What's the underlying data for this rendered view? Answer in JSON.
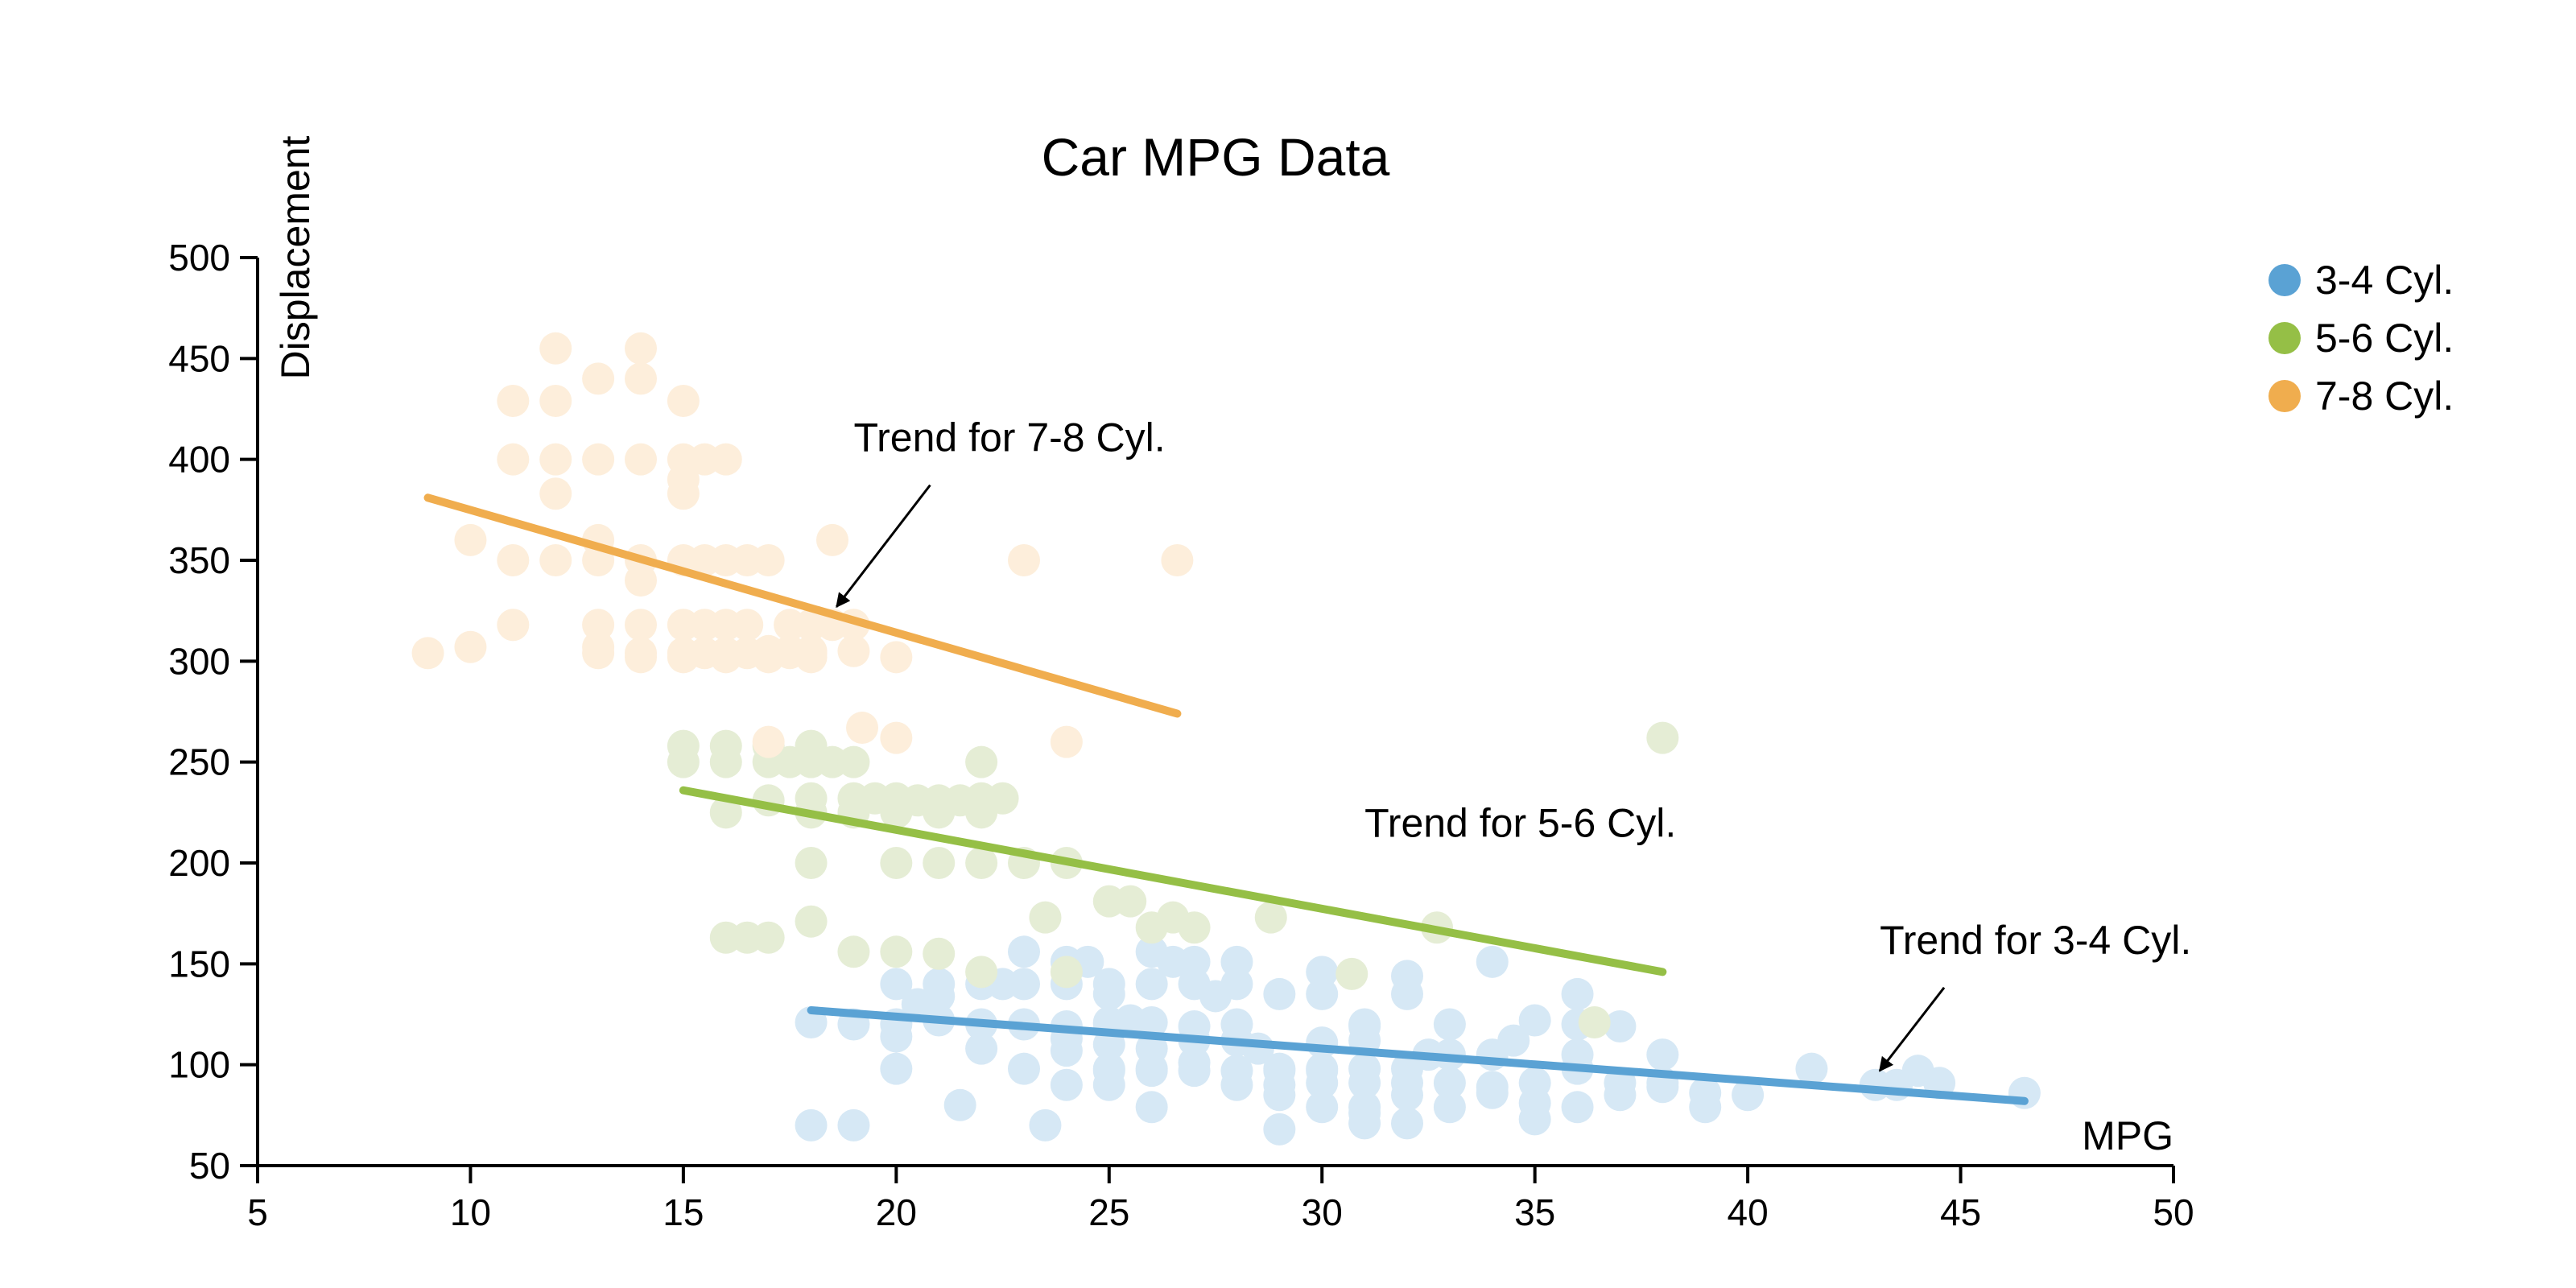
{
  "chart_data": {
    "type": "scatter",
    "title": "Car MPG Data",
    "xlabel": "MPG",
    "ylabel": "Displacement",
    "xlim": [
      5,
      50
    ],
    "ylim": [
      50,
      500
    ],
    "xticks": [
      5,
      10,
      15,
      20,
      25,
      30,
      35,
      40,
      45,
      50
    ],
    "yticks": [
      50,
      100,
      150,
      200,
      250,
      300,
      350,
      400,
      450,
      500
    ],
    "grid": false,
    "legend_position": "top-right",
    "series": [
      {
        "name": "3-4 Cyl.",
        "color": "#5aa2d4",
        "point_color": "#d6e8f5",
        "points": [
          [
            18,
            121
          ],
          [
            18,
            70
          ],
          [
            19,
            120
          ],
          [
            19,
            70
          ],
          [
            20,
            140
          ],
          [
            20,
            120
          ],
          [
            20,
            98
          ],
          [
            20,
            114
          ],
          [
            20.5,
            130
          ],
          [
            21,
            140
          ],
          [
            21,
            122
          ],
          [
            21,
            134
          ],
          [
            21.5,
            80
          ],
          [
            22,
            108
          ],
          [
            22,
            140
          ],
          [
            22,
            120
          ],
          [
            22.5,
            140
          ],
          [
            23,
            156
          ],
          [
            23,
            120
          ],
          [
            23,
            98
          ],
          [
            23,
            140
          ],
          [
            23.5,
            70
          ],
          [
            24,
            151
          ],
          [
            24,
            140
          ],
          [
            24,
            113
          ],
          [
            24,
            107
          ],
          [
            24,
            90
          ],
          [
            24,
            119
          ],
          [
            24.5,
            151
          ],
          [
            25,
            97
          ],
          [
            25,
            140
          ],
          [
            25,
            121
          ],
          [
            25,
            110
          ],
          [
            25,
            98
          ],
          [
            25,
            90
          ],
          [
            25,
            120
          ],
          [
            25,
            135
          ],
          [
            25.5,
            122
          ],
          [
            26,
            156
          ],
          [
            26,
            98
          ],
          [
            26,
            121
          ],
          [
            26,
            97
          ],
          [
            26,
            108
          ],
          [
            26,
            79
          ],
          [
            26,
            140
          ],
          [
            26.5,
            151
          ],
          [
            27,
            97
          ],
          [
            27,
            101
          ],
          [
            27,
            112
          ],
          [
            27,
            151
          ],
          [
            27,
            140
          ],
          [
            27,
            119
          ],
          [
            27.5,
            134
          ],
          [
            28,
            97
          ],
          [
            28,
            112
          ],
          [
            28,
            151
          ],
          [
            28,
            140
          ],
          [
            28,
            90
          ],
          [
            28,
            120
          ],
          [
            28.5,
            108
          ],
          [
            29,
            98
          ],
          [
            29,
            68
          ],
          [
            29,
            90
          ],
          [
            29,
            135
          ],
          [
            29,
            97
          ],
          [
            29,
            85
          ],
          [
            30,
            98
          ],
          [
            30,
            79
          ],
          [
            30,
            111
          ],
          [
            30,
            146
          ],
          [
            30,
            91
          ],
          [
            30,
            97
          ],
          [
            30,
            135
          ],
          [
            31,
            71
          ],
          [
            31,
            76
          ],
          [
            31,
            79
          ],
          [
            31,
            91
          ],
          [
            31,
            119
          ],
          [
            31,
            98
          ],
          [
            31,
            112
          ],
          [
            31,
            120
          ],
          [
            32,
            71
          ],
          [
            32,
            91
          ],
          [
            32,
            144
          ],
          [
            32,
            135
          ],
          [
            32,
            98
          ],
          [
            32,
            85
          ],
          [
            32.5,
            105
          ],
          [
            33,
            79
          ],
          [
            33,
            91
          ],
          [
            33,
            105
          ],
          [
            33,
            120
          ],
          [
            34,
            151
          ],
          [
            34,
            89
          ],
          [
            34,
            105
          ],
          [
            34,
            86
          ],
          [
            34.5,
            112
          ],
          [
            35,
            91
          ],
          [
            35,
            122
          ],
          [
            35,
            73
          ],
          [
            35,
            81
          ],
          [
            36,
            79
          ],
          [
            36,
            98
          ],
          [
            36,
            135
          ],
          [
            36,
            105
          ],
          [
            36,
            120
          ],
          [
            37,
            91
          ],
          [
            37,
            119
          ],
          [
            37,
            85
          ],
          [
            38,
            105
          ],
          [
            38,
            89
          ],
          [
            38,
            91
          ],
          [
            39,
            86
          ],
          [
            39,
            79
          ],
          [
            40,
            85
          ],
          [
            41.5,
            98
          ],
          [
            43,
            90
          ],
          [
            43.5,
            90
          ],
          [
            44,
            97
          ],
          [
            44.5,
            91
          ],
          [
            46.5,
            86
          ]
        ],
        "trend": [
          [
            18,
            127
          ],
          [
            46.5,
            82
          ]
        ]
      },
      {
        "name": "5-6 Cyl.",
        "color": "#95bf46",
        "point_color": "#e5edd5",
        "points": [
          [
            15,
            258
          ],
          [
            15,
            250
          ],
          [
            16,
            258
          ],
          [
            16,
            250
          ],
          [
            16,
            225
          ],
          [
            16.5,
            163
          ],
          [
            17,
            258
          ],
          [
            17,
            250
          ],
          [
            17,
            231
          ],
          [
            17.5,
            250
          ],
          [
            18,
            258
          ],
          [
            18,
            250
          ],
          [
            18,
            232
          ],
          [
            18,
            200
          ],
          [
            18,
            225
          ],
          [
            18,
            171
          ],
          [
            18.5,
            250
          ],
          [
            19,
            232
          ],
          [
            19,
            250
          ],
          [
            19,
            225
          ],
          [
            19,
            156
          ],
          [
            19.5,
            232
          ],
          [
            20,
            232
          ],
          [
            20,
            225
          ],
          [
            20,
            200
          ],
          [
            20,
            156
          ],
          [
            20.5,
            231
          ],
          [
            21,
            231
          ],
          [
            21,
            200
          ],
          [
            21,
            155
          ],
          [
            21,
            225
          ],
          [
            21.5,
            231
          ],
          [
            22,
            232
          ],
          [
            22,
            250
          ],
          [
            22,
            225
          ],
          [
            22,
            200
          ],
          [
            22,
            146
          ],
          [
            22.5,
            232
          ],
          [
            23,
            200
          ],
          [
            23.5,
            173
          ],
          [
            24,
            200
          ],
          [
            24,
            146
          ],
          [
            25,
            181
          ],
          [
            25.5,
            181
          ],
          [
            26,
            168
          ],
          [
            26.5,
            173
          ],
          [
            27,
            168
          ],
          [
            28.8,
            173
          ],
          [
            30.7,
            145
          ],
          [
            32.7,
            168
          ],
          [
            36.4,
            121
          ],
          [
            38,
            262
          ],
          [
            16,
            163
          ],
          [
            17,
            163
          ]
        ],
        "trend": [
          [
            15,
            236
          ],
          [
            38,
            146
          ]
        ]
      },
      {
        "name": "7-8 Cyl.",
        "color": "#f0ad4e",
        "point_color": "#fdeedb",
        "points": [
          [
            9,
            304
          ],
          [
            10,
            307
          ],
          [
            10,
            360
          ],
          [
            11,
            400
          ],
          [
            11,
            429
          ],
          [
            11,
            350
          ],
          [
            11,
            318
          ],
          [
            12,
            400
          ],
          [
            12,
            429
          ],
          [
            12,
            455
          ],
          [
            12,
            383
          ],
          [
            12,
            350
          ],
          [
            13,
            400
          ],
          [
            13,
            440
          ],
          [
            13,
            350
          ],
          [
            13,
            318
          ],
          [
            13,
            304
          ],
          [
            13,
            360
          ],
          [
            13,
            307
          ],
          [
            14,
            455
          ],
          [
            14,
            440
          ],
          [
            14,
            400
          ],
          [
            14,
            350
          ],
          [
            14,
            318
          ],
          [
            14,
            304
          ],
          [
            14,
            340
          ],
          [
            14,
            302
          ],
          [
            15,
            400
          ],
          [
            15,
            429
          ],
          [
            15,
            390
          ],
          [
            15,
            383
          ],
          [
            15,
            350
          ],
          [
            15,
            318
          ],
          [
            15,
            304
          ],
          [
            15,
            302
          ],
          [
            15.5,
            400
          ],
          [
            15.5,
            350
          ],
          [
            15.5,
            318
          ],
          [
            15.5,
            304
          ],
          [
            16,
            400
          ],
          [
            16,
            350
          ],
          [
            16,
            318
          ],
          [
            16,
            304
          ],
          [
            16,
            302
          ],
          [
            16.5,
            350
          ],
          [
            16.5,
            318
          ],
          [
            16.5,
            304
          ],
          [
            17,
            350
          ],
          [
            17,
            302
          ],
          [
            17,
            305
          ],
          [
            17,
            304
          ],
          [
            17.5,
            318
          ],
          [
            17.5,
            305
          ],
          [
            17.5,
            304
          ],
          [
            18,
            318
          ],
          [
            18,
            304
          ],
          [
            18,
            302
          ],
          [
            18,
            305
          ],
          [
            18.5,
            360
          ],
          [
            18.5,
            318
          ],
          [
            19,
            318
          ],
          [
            19,
            305
          ],
          [
            19.2,
            267
          ],
          [
            20,
            302
          ],
          [
            20,
            262
          ],
          [
            23,
            350
          ],
          [
            24,
            260
          ],
          [
            26.6,
            350
          ],
          [
            17,
            260
          ]
        ],
        "trend": [
          [
            9,
            381
          ],
          [
            26.6,
            274
          ]
        ]
      }
    ],
    "annotations": [
      {
        "text": "Trend for 7-8 Cyl.",
        "at": [
          18.6,
          327
        ],
        "text_at": [
          19,
          404
        ]
      },
      {
        "text": "Trend for 5-6 Cyl.",
        "at": null,
        "text_at": [
          31,
          213
        ]
      },
      {
        "text": "Trend for 3-4 Cyl.",
        "at": [
          43.1,
          97
        ],
        "text_at": [
          43.1,
          155
        ]
      }
    ]
  }
}
